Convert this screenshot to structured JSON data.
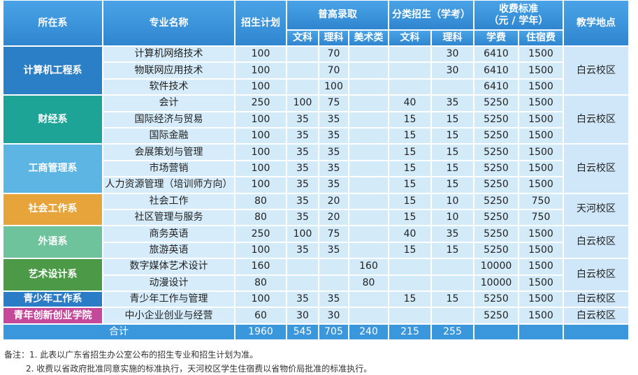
{
  "header": {
    "dept": "所在系",
    "major": "专业名称",
    "plan": "招生计划",
    "pugao": "普高录取",
    "fenlei": "分类招生（学考）",
    "fee_title": "收费标准",
    "fee_unit": "（元 / 学年）",
    "campus": "教学地点",
    "sub": [
      "文科",
      "理科",
      "美术类",
      "文科",
      "理科",
      "学费",
      "住宿费"
    ]
  },
  "departments": [
    {
      "name": "计算机工程系",
      "color": "#2b7fc6",
      "campus": "白云校区",
      "majors": [
        [
          "计算机网络技术",
          100,
          null,
          70,
          null,
          null,
          30,
          6410,
          1500
        ],
        [
          "物联网应用技术",
          100,
          null,
          70,
          null,
          null,
          30,
          6410,
          1500
        ],
        [
          "软件技术",
          100,
          null,
          100,
          null,
          null,
          null,
          6410,
          1500
        ]
      ]
    },
    {
      "name": "财经系",
      "color": "#1ea397",
      "campus": "白云校区",
      "majors": [
        [
          "会计",
          250,
          100,
          75,
          null,
          40,
          35,
          5250,
          1500
        ],
        [
          "国际经济与贸易",
          100,
          35,
          35,
          null,
          15,
          15,
          5250,
          1500
        ],
        [
          "国际金融",
          100,
          35,
          35,
          null,
          15,
          15,
          5250,
          1500
        ]
      ]
    },
    {
      "name": "工商管理系",
      "color": "#5cb5e2",
      "campus": "白云校区",
      "majors": [
        [
          "会展策划与管理",
          100,
          35,
          35,
          null,
          15,
          15,
          5250,
          1500
        ],
        [
          "市场营销",
          100,
          35,
          35,
          null,
          15,
          15,
          5250,
          1500
        ],
        [
          "人力资源管理（培训师方向）",
          100,
          35,
          35,
          null,
          15,
          15,
          5250,
          1500
        ]
      ]
    },
    {
      "name": "社会工作系",
      "color": "#e6a43b",
      "campus": "天河校区",
      "majors": [
        [
          "社会工作",
          80,
          35,
          20,
          null,
          15,
          10,
          5250,
          750
        ],
        [
          "社区管理与服务",
          80,
          35,
          20,
          null,
          15,
          10,
          5250,
          750
        ]
      ]
    },
    {
      "name": "外语系",
      "color": "#6fc39c",
      "campus": "白云校区",
      "majors": [
        [
          "商务英语",
          250,
          100,
          75,
          null,
          40,
          35,
          5250,
          1500
        ],
        [
          "旅游英语",
          100,
          35,
          35,
          null,
          15,
          15,
          5250,
          1500
        ]
      ]
    },
    {
      "name": "艺术设计系",
      "color": "#4c9a47",
      "campus": "白云校区",
      "majors": [
        [
          "数字媒体艺术设计",
          160,
          null,
          null,
          160,
          null,
          null,
          10000,
          1500
        ],
        [
          "动漫设计",
          80,
          null,
          null,
          80,
          null,
          null,
          10000,
          1500
        ]
      ]
    },
    {
      "name": "青少年工作系",
      "color": "#2b7cc6",
      "campus": "白云校区",
      "majors": [
        [
          "青少年工作与管理",
          100,
          35,
          35,
          null,
          15,
          15,
          5250,
          1500
        ]
      ]
    },
    {
      "name": "青年创新创业学院",
      "color": "#c6489a",
      "campus": "白云校区",
      "majors": [
        [
          "中小企业创业与经营",
          60,
          30,
          30,
          null,
          null,
          null,
          5250,
          1500
        ]
      ]
    }
  ],
  "total": {
    "label": "合计",
    "values": [
      1960,
      545,
      705,
      240,
      215,
      255,
      null,
      null
    ]
  },
  "notes": [
    "备注：1. 此表以广东省招生办公室公布的招生专业和招生计划为准。",
    "2. 收费以省政府批准同意实施的标准执行，天河校区学生住宿费以省物价局批准的标准执行。"
  ]
}
